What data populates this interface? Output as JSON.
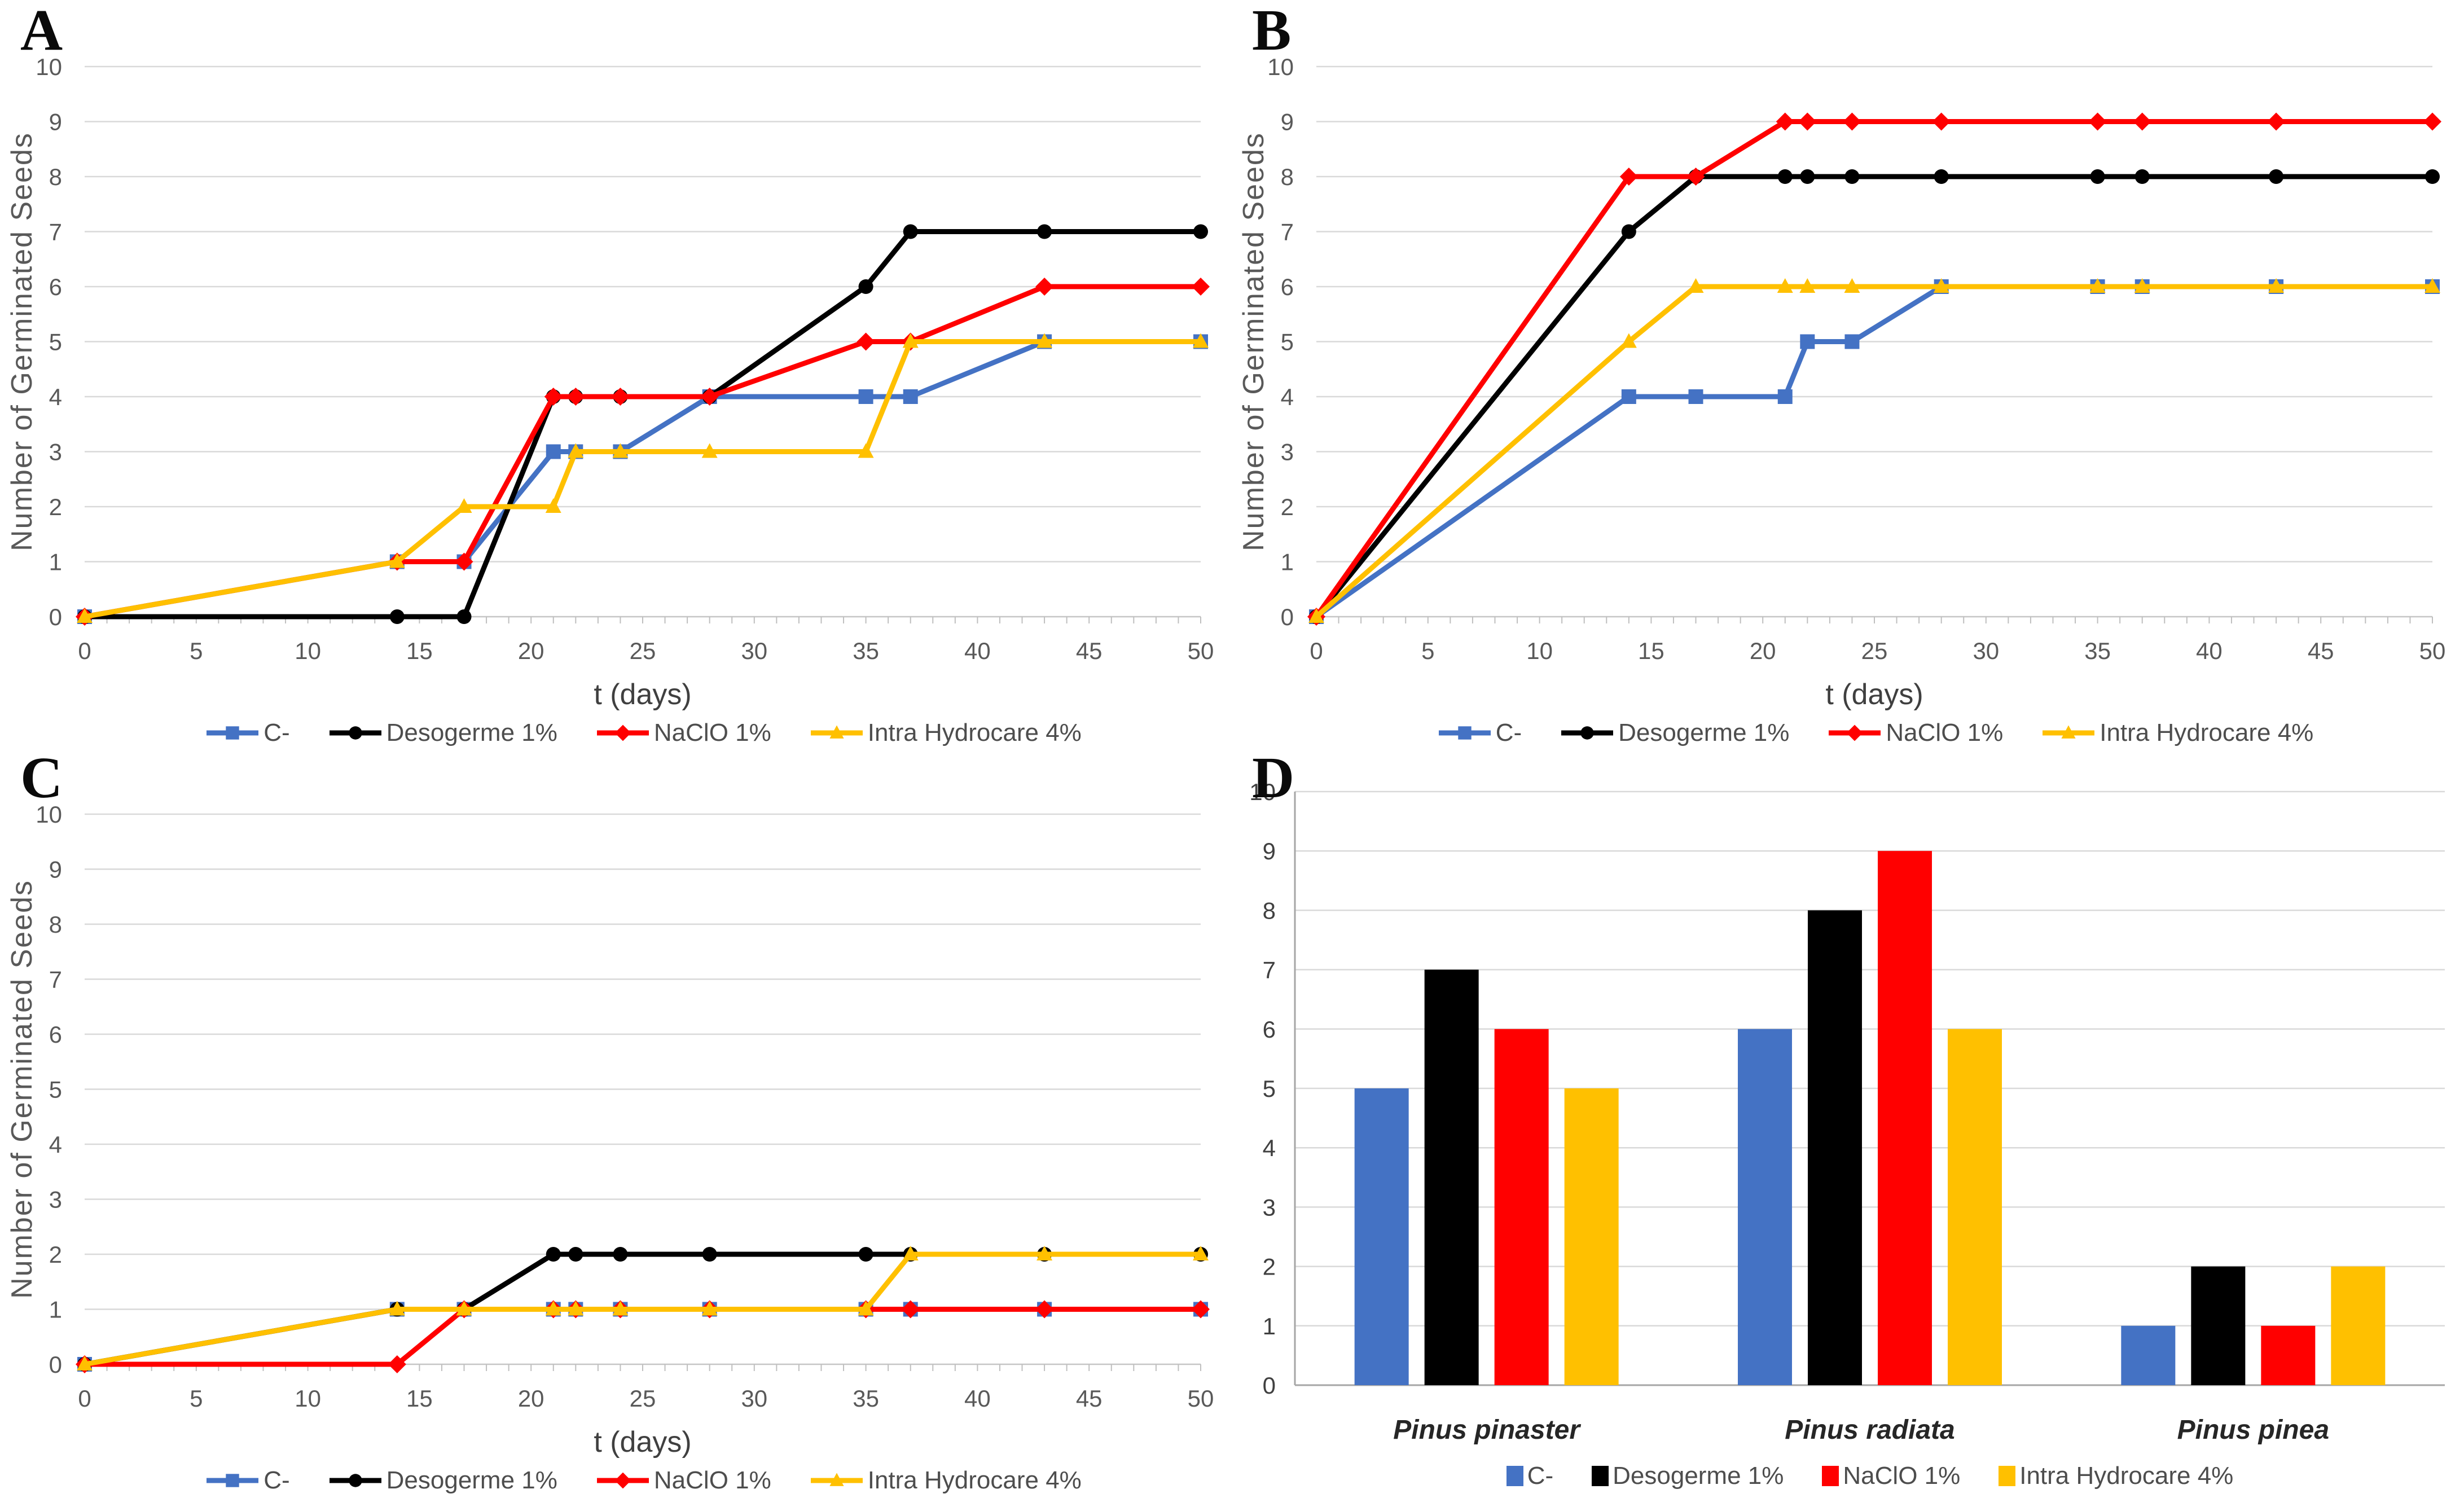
{
  "series_meta": [
    {
      "name": "C-",
      "color": "#4472C4",
      "marker": "square"
    },
    {
      "name": "Desogerme 1%",
      "color": "#000000",
      "marker": "circle"
    },
    {
      "name": "NaClO 1%",
      "color": "#FF0000",
      "marker": "diamond"
    },
    {
      "name": "Intra Hydrocare 4%",
      "color": "#FFC000",
      "marker": "triangle"
    }
  ],
  "chart_data": [
    {
      "panel_label": "A",
      "type": "line",
      "xlabel": "t (days)",
      "ylabel": "Number of Germinated Seeds",
      "xlim": [
        0,
        50
      ],
      "ylim": [
        0,
        10
      ],
      "xticks": [
        0,
        5,
        10,
        15,
        20,
        25,
        30,
        35,
        40,
        45,
        50
      ],
      "yticks": [
        0,
        1,
        2,
        3,
        4,
        5,
        6,
        7,
        8,
        9,
        10
      ],
      "x": [
        0,
        14,
        17,
        21,
        22,
        24,
        28,
        35,
        37,
        43,
        50
      ],
      "legend_position": "bottom",
      "grid": true,
      "series": [
        {
          "name": "C-",
          "values": [
            0,
            1,
            1,
            3,
            3,
            3,
            4,
            4,
            4,
            5,
            5
          ]
        },
        {
          "name": "Desogerme 1%",
          "values": [
            0,
            0,
            0,
            4,
            4,
            4,
            4,
            6,
            7,
            7,
            7
          ]
        },
        {
          "name": "NaClO 1%",
          "values": [
            0,
            1,
            1,
            4,
            4,
            4,
            4,
            5,
            5,
            6,
            6
          ]
        },
        {
          "name": "Intra Hydrocare 4%",
          "values": [
            0,
            1,
            2,
            2,
            3,
            3,
            3,
            3,
            5,
            5,
            5
          ]
        }
      ]
    },
    {
      "panel_label": "B",
      "type": "line",
      "xlabel": "t (days)",
      "ylabel": "Number of Germinated Seeds",
      "xlim": [
        0,
        50
      ],
      "ylim": [
        0,
        10
      ],
      "xticks": [
        0,
        5,
        10,
        15,
        20,
        25,
        30,
        35,
        40,
        45,
        50
      ],
      "yticks": [
        0,
        1,
        2,
        3,
        4,
        5,
        6,
        7,
        8,
        9,
        10
      ],
      "x": [
        0,
        14,
        17,
        21,
        22,
        24,
        28,
        35,
        37,
        43,
        50
      ],
      "legend_position": "bottom",
      "grid": true,
      "series": [
        {
          "name": "C-",
          "values": [
            0,
            4,
            4,
            4,
            5,
            5,
            6,
            6,
            6,
            6,
            6
          ]
        },
        {
          "name": "Desogerme 1%",
          "values": [
            0,
            7,
            8,
            8,
            8,
            8,
            8,
            8,
            8,
            8,
            8
          ]
        },
        {
          "name": "NaClO 1%",
          "values": [
            0,
            8,
            8,
            9,
            9,
            9,
            9,
            9,
            9,
            9,
            9
          ]
        },
        {
          "name": "Intra Hydrocare 4%",
          "values": [
            0,
            5,
            6,
            6,
            6,
            6,
            6,
            6,
            6,
            6,
            6
          ]
        }
      ]
    },
    {
      "panel_label": "C",
      "type": "line",
      "xlabel": "t (days)",
      "ylabel": "Number of Germinated Seeds",
      "xlim": [
        0,
        50
      ],
      "ylim": [
        0,
        10
      ],
      "xticks": [
        0,
        5,
        10,
        15,
        20,
        25,
        30,
        35,
        40,
        45,
        50
      ],
      "yticks": [
        0,
        1,
        2,
        3,
        4,
        5,
        6,
        7,
        8,
        9,
        10
      ],
      "x": [
        0,
        14,
        17,
        21,
        22,
        24,
        28,
        35,
        37,
        43,
        50
      ],
      "legend_position": "bottom",
      "grid": true,
      "series": [
        {
          "name": "C-",
          "values": [
            0,
            1,
            1,
            1,
            1,
            1,
            1,
            1,
            1,
            1,
            1
          ]
        },
        {
          "name": "Desogerme 1%",
          "values": [
            0,
            1,
            1,
            2,
            2,
            2,
            2,
            2,
            2,
            2,
            2
          ]
        },
        {
          "name": "NaClO 1%",
          "values": [
            0,
            0,
            1,
            1,
            1,
            1,
            1,
            1,
            1,
            1,
            1
          ]
        },
        {
          "name": "Intra Hydrocare 4%",
          "values": [
            0,
            1,
            1,
            1,
            1,
            1,
            1,
            1,
            2,
            2,
            2
          ]
        }
      ]
    },
    {
      "panel_label": "D",
      "type": "bar",
      "ylim": [
        0,
        10
      ],
      "yticks": [
        0,
        1,
        2,
        3,
        4,
        5,
        6,
        7,
        8,
        9,
        10
      ],
      "categories": [
        "Pinus pinaster",
        "Pinus radiata",
        "Pinus pinea"
      ],
      "legend_position": "bottom",
      "grid": true,
      "series": [
        {
          "name": "C-",
          "values": [
            5,
            6,
            1
          ]
        },
        {
          "name": "Desogerme 1%",
          "values": [
            7,
            8,
            2
          ]
        },
        {
          "name": "NaClO 1%",
          "values": [
            6,
            9,
            1
          ]
        },
        {
          "name": "Intra Hydrocare 4%",
          "values": [
            5,
            6,
            2
          ]
        }
      ]
    }
  ]
}
